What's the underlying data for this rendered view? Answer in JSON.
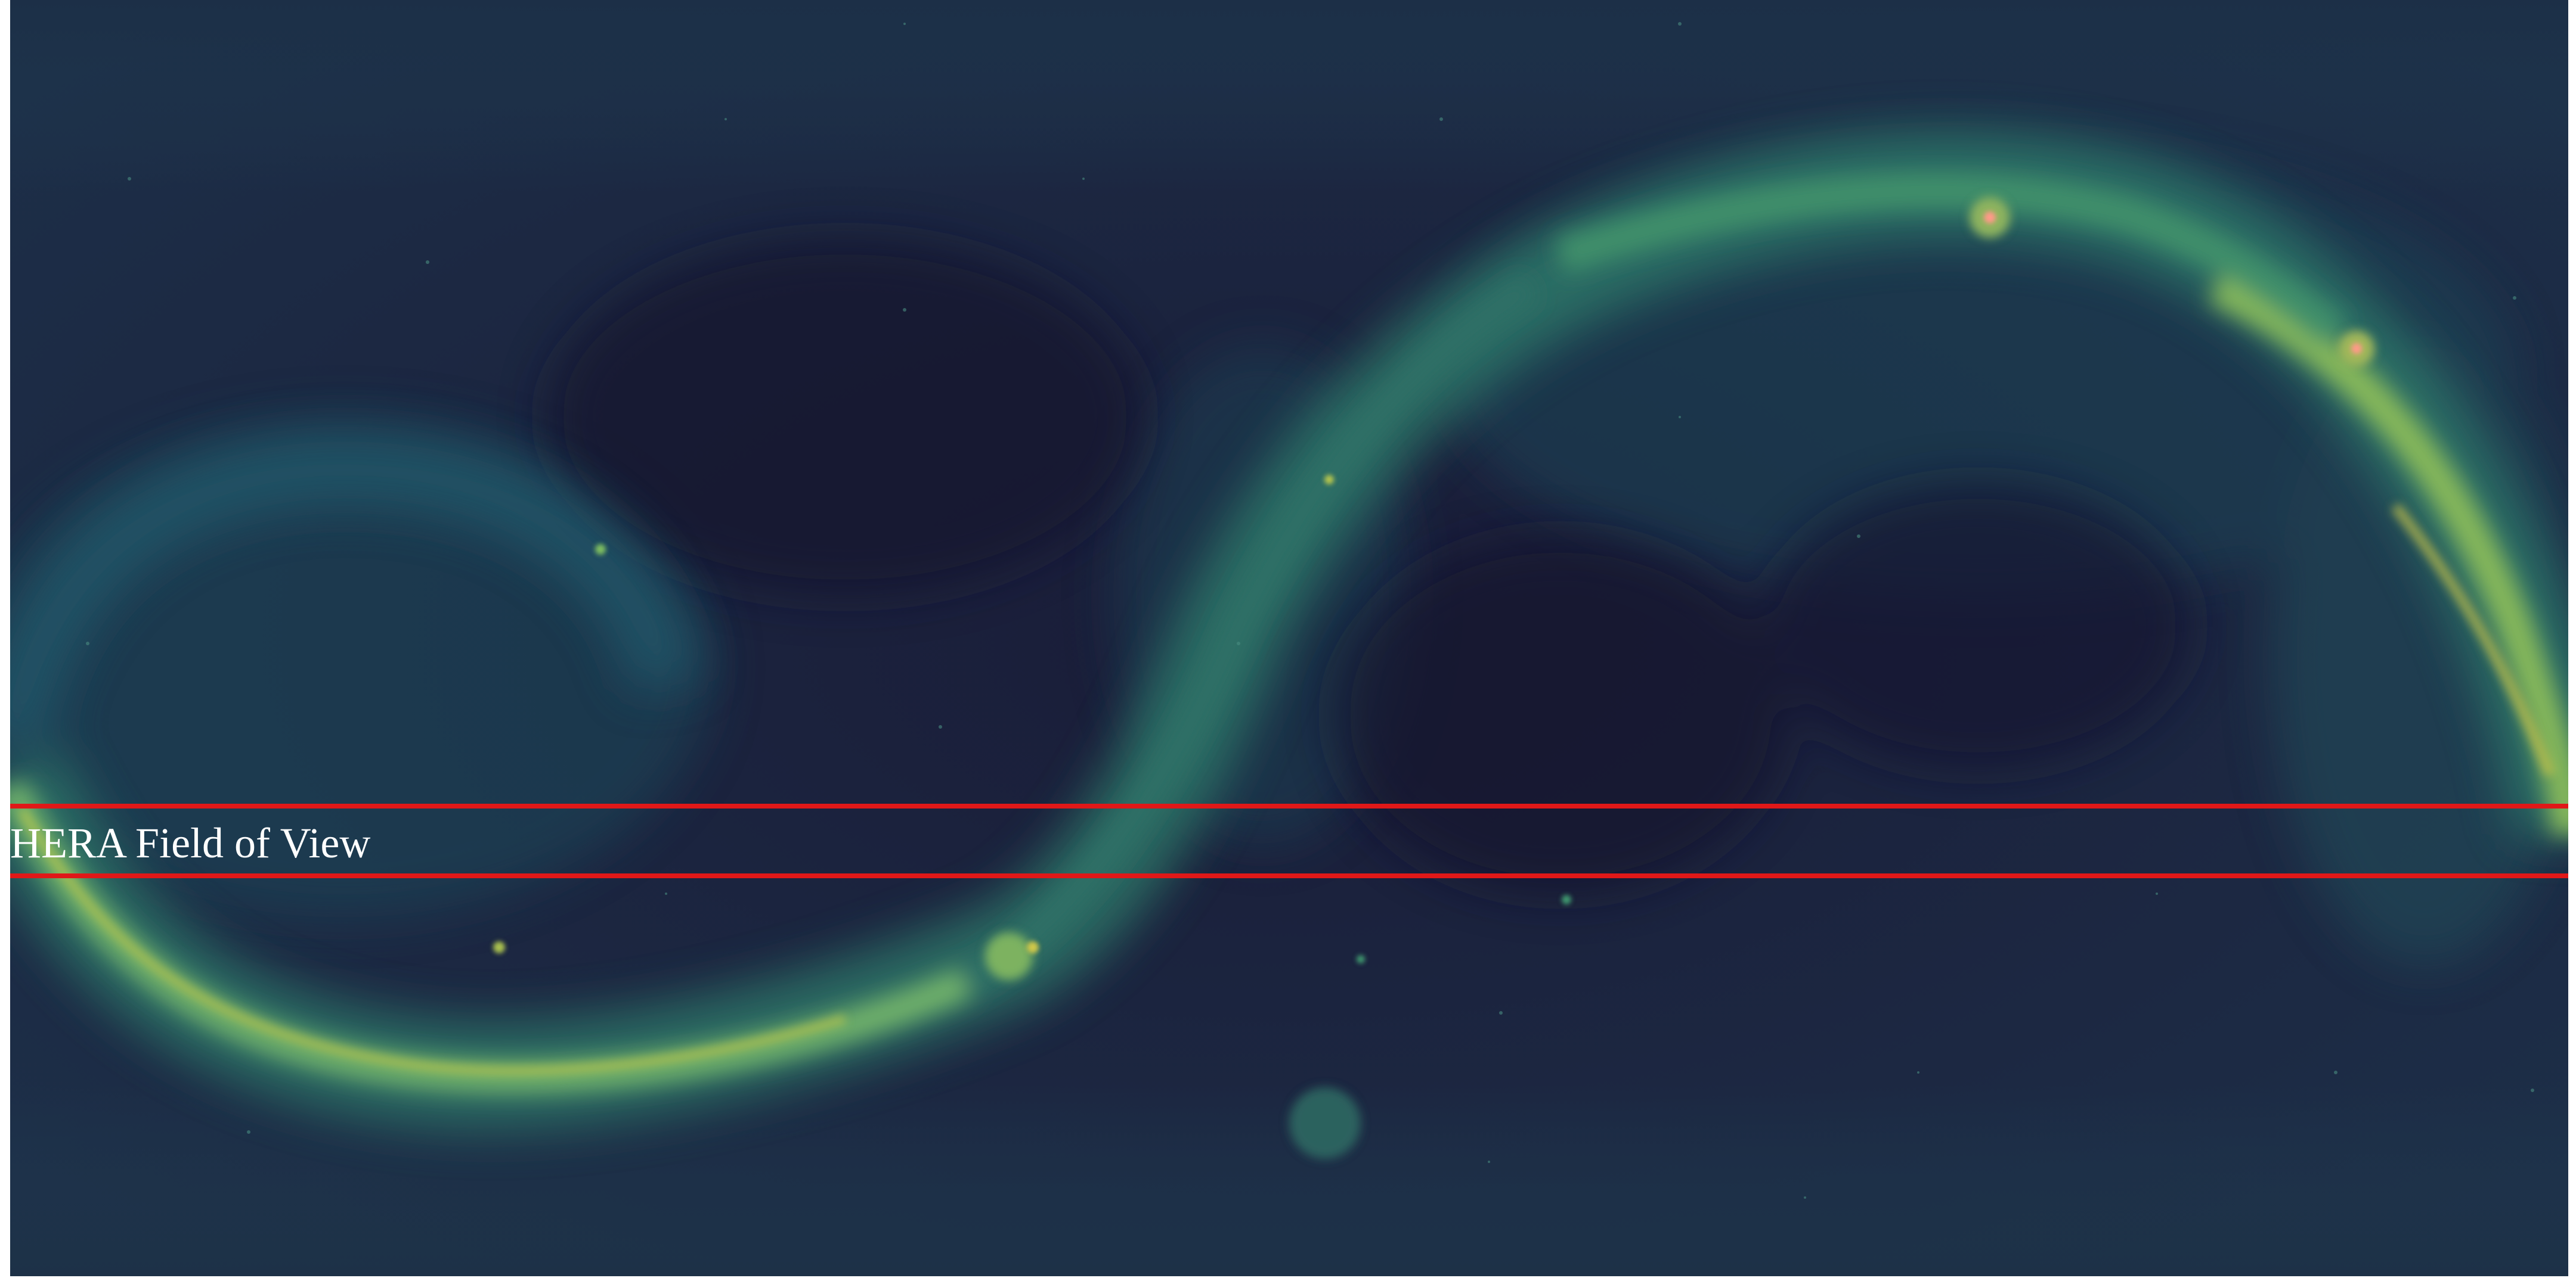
{
  "image": {
    "kind": "all-sky radio map (equirectangular projection)",
    "colors": {
      "background_dark": "#161a33",
      "background_mid": "#1f3a4f",
      "galactic_plane": "#5fa86a",
      "galactic_plane_bright": "#b5c94d",
      "bright_source": "#ff8a80",
      "fov_lines": "#e01818",
      "label_text": "#ffffff"
    }
  },
  "overlay": {
    "label": "HERA Field of View"
  }
}
